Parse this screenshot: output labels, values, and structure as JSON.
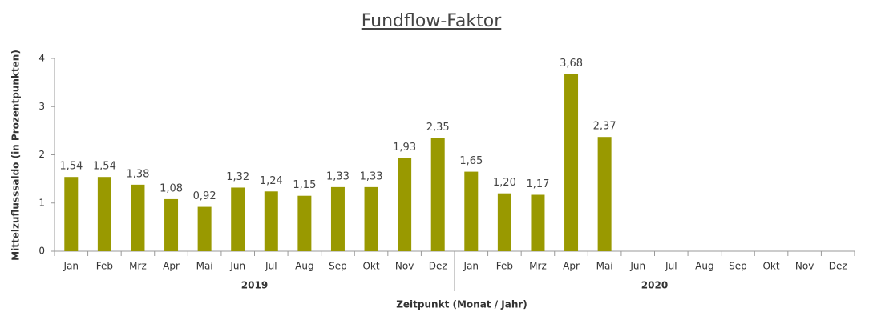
{
  "chart_data": {
    "type": "bar",
    "title": "Fundflow-Faktor",
    "y_label": "Mittelzuflusssaldo (in Prozentpunkten)",
    "x_label": "Zeitpunkt (Monat / Jahr)",
    "groups": [
      "2019",
      "2020"
    ],
    "categories": [
      "Jan",
      "Feb",
      "Mrz",
      "Apr",
      "Mai",
      "Jun",
      "Jul",
      "Aug",
      "Sep",
      "Okt",
      "Nov",
      "Dez",
      "Jan",
      "Feb",
      "Mrz",
      "Apr",
      "Mai",
      "Jun",
      "Jul",
      "Aug",
      "Sep",
      "Okt",
      "Nov",
      "Dez"
    ],
    "values": [
      1.54,
      1.54,
      1.38,
      1.08,
      0.92,
      1.32,
      1.24,
      1.15,
      1.33,
      1.33,
      1.93,
      2.35,
      1.65,
      1.2,
      1.17,
      3.68,
      2.37,
      null,
      null,
      null,
      null,
      null,
      null,
      null
    ],
    "value_labels": [
      "1,54",
      "1,54",
      "1,38",
      "1,08",
      "0,92",
      "1,32",
      "1,24",
      "1,15",
      "1,33",
      "1,33",
      "1,93",
      "2,35",
      "1,65",
      "1,20",
      "1,17",
      "3,68",
      "2,37",
      null,
      null,
      null,
      null,
      null,
      null,
      null
    ],
    "color": "#999900",
    "ylim": [
      0,
      4
    ],
    "yticks": [
      0,
      1,
      2,
      3,
      4
    ]
  }
}
